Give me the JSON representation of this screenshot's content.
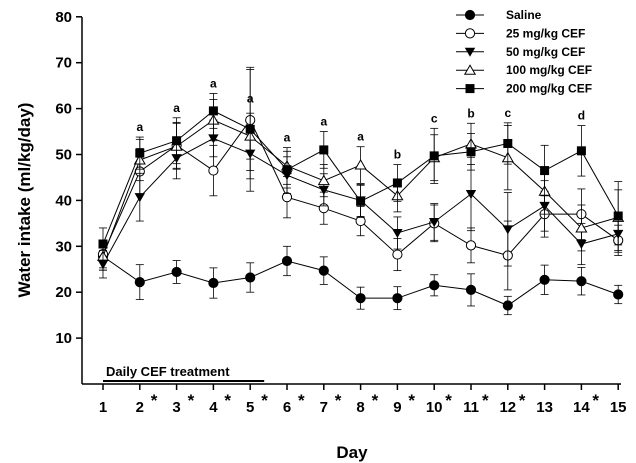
{
  "chart_data": {
    "type": "line",
    "title": "",
    "xlabel": "Day",
    "ylabel": "Water intake (ml/kg/day)",
    "ylim": [
      0,
      80
    ],
    "yticks": [
      10,
      20,
      30,
      40,
      50,
      60,
      70,
      80
    ],
    "x": [
      "1",
      "2",
      "3",
      "4",
      "5",
      "6",
      "7",
      "8",
      "9",
      "10",
      "11",
      "12",
      "13",
      "14",
      "15"
    ],
    "significant_days": [
      "2",
      "3",
      "4",
      "5",
      "6",
      "7",
      "8",
      "9",
      "10",
      "11",
      "12",
      "14"
    ],
    "significance_marker": "*",
    "legend_position": "top-right",
    "series": [
      {
        "name": "Saline",
        "marker": "circle-filled",
        "values": [
          27.8,
          22.2,
          24.4,
          22.0,
          23.2,
          26.8,
          24.7,
          18.7,
          18.7,
          21.5,
          20.5,
          17.1,
          22.7,
          22.4,
          19.5
        ],
        "errors": [
          3.0,
          3.8,
          2.5,
          3.3,
          3.2,
          3.2,
          3.0,
          2.4,
          2.5,
          2.3,
          3.5,
          2.0,
          3.2,
          3.0,
          2.0
        ]
      },
      {
        "name": "25 mg/kg CEF",
        "marker": "circle-open",
        "values": [
          28.3,
          46.3,
          52.0,
          46.5,
          57.5,
          40.7,
          38.3,
          35.5,
          28.2,
          35.0,
          30.2,
          28.0,
          37.0,
          37.0,
          31.3
        ],
        "errors": [
          3.0,
          5.0,
          5.0,
          5.5,
          11.0,
          4.5,
          3.5,
          3.2,
          3.5,
          4.0,
          3.8,
          7.5,
          5.0,
          5.5,
          3.3
        ]
      },
      {
        "name": "50 mg/kg CEF",
        "marker": "triangle-down-filled",
        "values": [
          26.1,
          40.7,
          49.2,
          53.5,
          50.2,
          45.5,
          42.3,
          40.0,
          32.9,
          35.3,
          41.4,
          33.7,
          38.8,
          30.5,
          32.7
        ],
        "errors": [
          3.0,
          5.2,
          4.5,
          4.0,
          5.5,
          4.0,
          3.5,
          3.5,
          3.5,
          4.0,
          8.0,
          8.0,
          5.5,
          4.5,
          4.0
        ]
      },
      {
        "name": "100 mg/kg CEF",
        "marker": "triangle-up-open",
        "values": [
          27.8,
          48.8,
          51.8,
          57.5,
          54.0,
          47.5,
          44.3,
          47.7,
          41.0,
          49.3,
          52.3,
          49.3,
          42.0,
          34.0,
          36.3
        ],
        "errors": [
          3.0,
          4.5,
          5.0,
          4.5,
          5.0,
          4.0,
          3.5,
          4.0,
          3.5,
          5.0,
          4.5,
          7.0,
          5.0,
          5.0,
          6.0
        ]
      },
      {
        "name": "200 mg/kg CEF",
        "marker": "square-filled",
        "values": [
          30.5,
          50.3,
          53.0,
          59.5,
          55.5,
          46.7,
          51.0,
          39.8,
          43.8,
          49.7,
          50.6,
          52.4,
          46.5,
          50.8,
          36.6
        ],
        "errors": [
          3.5,
          3.5,
          5.0,
          3.8,
          13.5,
          4.0,
          4.0,
          3.5,
          4.0,
          6.0,
          4.0,
          4.5,
          5.5,
          5.5,
          7.5
        ]
      }
    ],
    "annotations": [
      {
        "x": "2",
        "text": "a"
      },
      {
        "x": "3",
        "text": "a"
      },
      {
        "x": "4",
        "text": "a"
      },
      {
        "x": "5",
        "text": "a"
      },
      {
        "x": "6",
        "text": "a"
      },
      {
        "x": "7",
        "text": "a"
      },
      {
        "x": "8",
        "text": "a"
      },
      {
        "x": "9",
        "text": "b"
      },
      {
        "x": "10",
        "text": "c"
      },
      {
        "x": "11",
        "text": "b"
      },
      {
        "x": "12",
        "text": "c"
      },
      {
        "x": "14",
        "text": "d"
      }
    ],
    "treatment_bar": {
      "label": "Daily CEF  treatment",
      "from": "1",
      "to": "5"
    }
  }
}
